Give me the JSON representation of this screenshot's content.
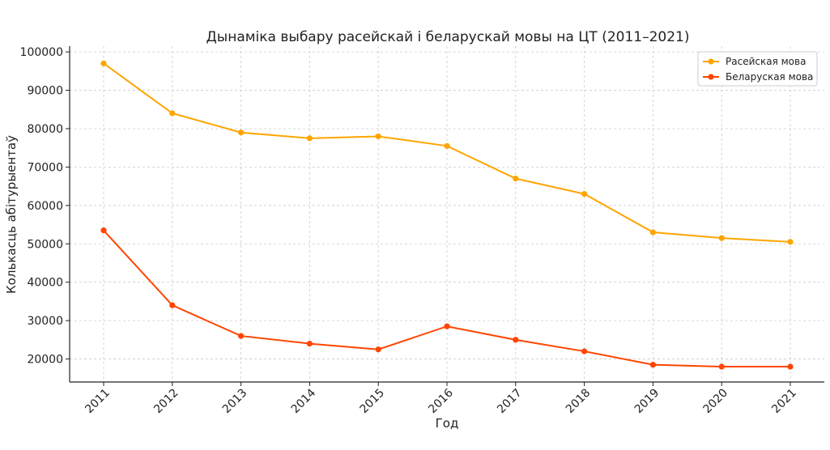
{
  "chart_data": {
    "type": "line",
    "title": "Дынаміка выбару расейскай і беларускай мовы на ЦТ (2011–2021)",
    "xlabel": "Год",
    "ylabel": "Колькасць абітурыентаў",
    "categories": [
      "2011",
      "2012",
      "2013",
      "2014",
      "2015",
      "2016",
      "2017",
      "2018",
      "2019",
      "2020",
      "2021"
    ],
    "y_ticks": [
      "20000",
      "30000",
      "40000",
      "50000",
      "60000",
      "70000",
      "80000",
      "90000",
      "100000"
    ],
    "ylim": [
      14000,
      101500
    ],
    "grid": true,
    "legend_position": "top-right",
    "series": [
      {
        "name": "Расейская мова",
        "color": "#FFA500",
        "values": [
          97000,
          84000,
          79000,
          77500,
          78000,
          75500,
          67000,
          63000,
          53000,
          51500,
          50500
        ]
      },
      {
        "name": "Беларуская мова",
        "color": "#FF4500",
        "values": [
          53500,
          34000,
          26000,
          24000,
          22500,
          28500,
          25000,
          22000,
          18500,
          18000,
          18000
        ]
      }
    ]
  }
}
